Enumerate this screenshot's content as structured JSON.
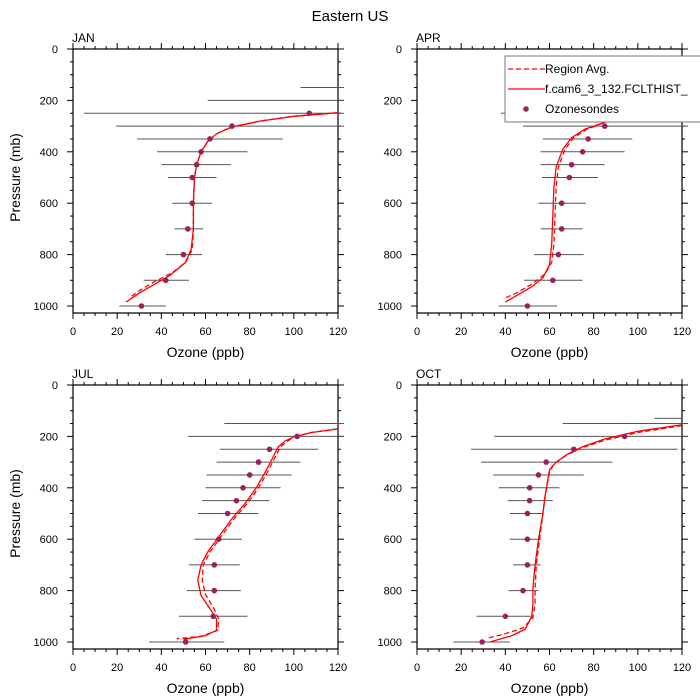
{
  "chart_data": [
    {
      "type": "scatter",
      "title": "JAN",
      "xlabel": "Ozone (ppb)",
      "ylabel": "Pressure (mb)",
      "xlim": [
        0,
        120
      ],
      "ylim": [
        1000,
        0
      ],
      "xticks": [
        "0",
        "20",
        "40",
        "60",
        "80",
        "100",
        "120"
      ],
      "yticks": [
        "0",
        "200",
        "400",
        "600",
        "800",
        "1000"
      ],
      "ozonesondes": {
        "pressure": [
          250,
          300,
          350,
          400,
          450,
          500,
          600,
          700,
          800,
          900,
          1000
        ],
        "ozone": [
          107,
          72,
          62,
          58,
          56,
          54,
          54,
          52,
          50,
          42,
          31
        ]
      },
      "error_bars": [
        {
          "p": 150,
          "lo": 103,
          "hi": 130
        },
        {
          "p": 200,
          "lo": 61,
          "hi": 130
        },
        {
          "p": 250,
          "lo": 5,
          "hi": 130
        },
        {
          "p": 300,
          "lo": 19.5,
          "hi": 130
        },
        {
          "p": 350,
          "lo": 29,
          "hi": 95
        },
        {
          "p": 400,
          "lo": 38,
          "hi": 79
        },
        {
          "p": 450,
          "lo": 40,
          "hi": 71.5
        },
        {
          "p": 500,
          "lo": 43,
          "hi": 65
        },
        {
          "p": 600,
          "lo": 45,
          "hi": 63
        },
        {
          "p": 700,
          "lo": 46,
          "hi": 59
        },
        {
          "p": 800,
          "lo": 42,
          "hi": 58.5
        },
        {
          "p": 900,
          "lo": 32,
          "hi": 52.5
        },
        {
          "p": 1000,
          "lo": 21,
          "hi": 42
        }
      ],
      "model": [
        [
          120,
          248
        ],
        [
          100,
          262
        ],
        [
          85,
          280
        ],
        [
          72,
          303
        ],
        [
          65,
          330
        ],
        [
          61,
          360
        ],
        [
          58,
          400
        ],
        [
          56,
          450
        ],
        [
          55,
          500
        ],
        [
          54.5,
          600
        ],
        [
          54.5,
          700
        ],
        [
          53.5,
          780
        ],
        [
          51,
          830
        ],
        [
          44,
          880
        ],
        [
          36,
          920
        ],
        [
          30,
          950
        ],
        [
          24,
          985
        ]
      ],
      "region_avg": [
        [
          120,
          248
        ],
        [
          100,
          262
        ],
        [
          85,
          280
        ],
        [
          72,
          303
        ],
        [
          65,
          330
        ],
        [
          61,
          360
        ],
        [
          58,
          400
        ],
        [
          56,
          450
        ],
        [
          55,
          500
        ],
        [
          54.5,
          600
        ],
        [
          54.5,
          700
        ],
        [
          54,
          780
        ],
        [
          51,
          830
        ],
        [
          45,
          870
        ],
        [
          37,
          905
        ],
        [
          31,
          935
        ],
        [
          26,
          965
        ]
      ]
    },
    {
      "type": "scatter",
      "title": "APR",
      "xlabel": "Ozone (ppb)",
      "ylabel": "",
      "xlim": [
        0,
        120
      ],
      "ylim": [
        1000,
        0
      ],
      "xticks": [
        "0",
        "20",
        "40",
        "60",
        "80",
        "100",
        "120"
      ],
      "yticks": [
        "0",
        "200",
        "400",
        "600",
        "800",
        "1000"
      ],
      "ozonesondes": {
        "pressure": [
          250,
          300,
          350,
          400,
          450,
          500,
          600,
          700,
          800,
          900,
          1000
        ],
        "ozone": [
          104,
          85,
          77.5,
          75,
          70,
          69,
          65.5,
          65.5,
          64,
          61.5,
          50
        ]
      },
      "error_bars": [
        {
          "p": 200,
          "lo": 52,
          "hi": 130
        },
        {
          "p": 250,
          "lo": 38,
          "hi": 130
        },
        {
          "p": 300,
          "lo": 48,
          "hi": 130
        },
        {
          "p": 350,
          "lo": 57,
          "hi": 97.5
        },
        {
          "p": 400,
          "lo": 56,
          "hi": 94
        },
        {
          "p": 450,
          "lo": 56,
          "hi": 85
        },
        {
          "p": 500,
          "lo": 56.5,
          "hi": 82
        },
        {
          "p": 600,
          "lo": 55,
          "hi": 76.5
        },
        {
          "p": 700,
          "lo": 56,
          "hi": 75
        },
        {
          "p": 800,
          "lo": 53,
          "hi": 75.5
        },
        {
          "p": 900,
          "lo": 48.5,
          "hi": 75
        },
        {
          "p": 1000,
          "lo": 37,
          "hi": 63.5
        }
      ],
      "model": [
        [
          120,
          250
        ],
        [
          100,
          262
        ],
        [
          86,
          282
        ],
        [
          76,
          312
        ],
        [
          70,
          345
        ],
        [
          66,
          390
        ],
        [
          63,
          460
        ],
        [
          62,
          540
        ],
        [
          61.5,
          650
        ],
        [
          61,
          760
        ],
        [
          60,
          840
        ],
        [
          57,
          890
        ],
        [
          52,
          925
        ],
        [
          45,
          960
        ],
        [
          40,
          985
        ]
      ],
      "region_avg": [
        [
          120,
          250
        ],
        [
          100,
          262
        ],
        [
          86,
          282
        ],
        [
          77,
          312
        ],
        [
          71,
          345
        ],
        [
          67,
          390
        ],
        [
          64,
          460
        ],
        [
          63,
          540
        ],
        [
          62.5,
          650
        ],
        [
          62,
          760
        ],
        [
          61,
          830
        ],
        [
          58,
          875
        ],
        [
          52,
          915
        ],
        [
          45,
          950
        ],
        [
          39,
          972
        ]
      ]
    },
    {
      "type": "scatter",
      "title": "JUL",
      "xlabel": "Ozone (ppb)",
      "ylabel": "Pressure (mb)",
      "xlim": [
        0,
        120
      ],
      "ylim": [
        1000,
        0
      ],
      "xticks": [
        "0",
        "20",
        "40",
        "60",
        "80",
        "100",
        "120"
      ],
      "yticks": [
        "0",
        "200",
        "400",
        "600",
        "800",
        "1000"
      ],
      "ozonesondes": {
        "pressure": [
          200,
          250,
          300,
          350,
          400,
          450,
          500,
          600,
          700,
          800,
          900,
          1000
        ],
        "ozone": [
          101.5,
          89,
          84,
          80,
          77,
          74,
          70,
          66,
          64,
          64,
          63.5,
          51
        ]
      },
      "error_bars": [
        {
          "p": 150,
          "lo": 68.5,
          "hi": 130
        },
        {
          "p": 200,
          "lo": 52,
          "hi": 130
        },
        {
          "p": 250,
          "lo": 66.5,
          "hi": 111
        },
        {
          "p": 300,
          "lo": 65,
          "hi": 103
        },
        {
          "p": 350,
          "lo": 60.5,
          "hi": 99
        },
        {
          "p": 400,
          "lo": 60,
          "hi": 94
        },
        {
          "p": 450,
          "lo": 58.5,
          "hi": 89
        },
        {
          "p": 500,
          "lo": 56.5,
          "hi": 84
        },
        {
          "p": 600,
          "lo": 55,
          "hi": 76.5
        },
        {
          "p": 700,
          "lo": 52.5,
          "hi": 75.5
        },
        {
          "p": 800,
          "lo": 51.5,
          "hi": 76
        },
        {
          "p": 900,
          "lo": 48,
          "hi": 79
        },
        {
          "p": 1000,
          "lo": 34.5,
          "hi": 68.5
        }
      ],
      "model": [
        [
          120,
          171
        ],
        [
          108,
          185
        ],
        [
          100,
          202
        ],
        [
          96,
          218
        ],
        [
          93,
          240
        ],
        [
          90,
          290
        ],
        [
          87,
          340
        ],
        [
          83,
          400
        ],
        [
          78,
          460
        ],
        [
          72,
          520
        ],
        [
          66,
          590
        ],
        [
          61,
          650
        ],
        [
          58,
          700
        ],
        [
          56.5,
          760
        ],
        [
          58,
          820
        ],
        [
          62,
          870
        ],
        [
          65,
          910
        ],
        [
          65,
          955
        ],
        [
          60,
          975
        ],
        [
          50,
          990
        ]
      ],
      "region_avg": [
        [
          120,
          171
        ],
        [
          108,
          185
        ],
        [
          100,
          202
        ],
        [
          97,
          220
        ],
        [
          94,
          240
        ],
        [
          91,
          290
        ],
        [
          88,
          340
        ],
        [
          84,
          400
        ],
        [
          79,
          460
        ],
        [
          73,
          520
        ],
        [
          67,
          590
        ],
        [
          62,
          650
        ],
        [
          59,
          700
        ],
        [
          58.5,
          760
        ],
        [
          60,
          815
        ],
        [
          63.5,
          865
        ],
        [
          66,
          910
        ],
        [
          65.5,
          955
        ],
        [
          58,
          978
        ],
        [
          47,
          987
        ]
      ]
    },
    {
      "type": "scatter",
      "title": "OCT",
      "xlabel": "Ozone (ppb)",
      "ylabel": "",
      "xlim": [
        0,
        120
      ],
      "ylim": [
        1000,
        0
      ],
      "xticks": [
        "0",
        "20",
        "40",
        "60",
        "80",
        "100",
        "120"
      ],
      "yticks": [
        "0",
        "200",
        "400",
        "600",
        "800",
        "1000"
      ],
      "ozonesondes": {
        "pressure": [
          200,
          250,
          300,
          350,
          400,
          450,
          500,
          600,
          700,
          800,
          900,
          1000
        ],
        "ozone": [
          94,
          71,
          58.5,
          55,
          51,
          51,
          50,
          50,
          50,
          48,
          40,
          29.5
        ]
      },
      "error_bars": [
        {
          "p": 130,
          "lo": 107.5,
          "hi": 120
        },
        {
          "p": 150,
          "lo": 66,
          "hi": 130
        },
        {
          "p": 200,
          "lo": 35,
          "hi": 130
        },
        {
          "p": 250,
          "lo": 24.5,
          "hi": 118
        },
        {
          "p": 300,
          "lo": 29,
          "hi": 88.5
        },
        {
          "p": 350,
          "lo": 34.5,
          "hi": 75.5
        },
        {
          "p": 400,
          "lo": 37,
          "hi": 64.5
        },
        {
          "p": 450,
          "lo": 41,
          "hi": 61.5
        },
        {
          "p": 500,
          "lo": 42,
          "hi": 57
        },
        {
          "p": 600,
          "lo": 42,
          "hi": 56
        },
        {
          "p": 700,
          "lo": 43.5,
          "hi": 56
        },
        {
          "p": 800,
          "lo": 41.5,
          "hi": 55
        },
        {
          "p": 900,
          "lo": 27,
          "hi": 51.5
        },
        {
          "p": 1000,
          "lo": 16.5,
          "hi": 42
        }
      ],
      "model": [
        [
          120,
          155
        ],
        [
          100,
          180
        ],
        [
          85,
          210
        ],
        [
          75,
          240
        ],
        [
          68,
          270
        ],
        [
          63,
          300
        ],
        [
          60,
          330
        ],
        [
          59,
          380
        ],
        [
          58,
          430
        ],
        [
          57,
          500
        ],
        [
          55,
          600
        ],
        [
          53.5,
          700
        ],
        [
          52.5,
          790
        ],
        [
          52.5,
          850
        ],
        [
          52,
          900
        ],
        [
          49,
          950
        ],
        [
          43,
          975
        ],
        [
          33,
          1000
        ]
      ],
      "region_avg": [
        [
          120,
          158
        ],
        [
          100,
          185
        ],
        [
          85,
          215
        ],
        [
          74,
          246
        ],
        [
          67,
          277
        ],
        [
          62,
          307
        ],
        [
          60,
          340
        ],
        [
          59,
          385
        ],
        [
          58,
          435
        ],
        [
          57,
          500
        ],
        [
          55.5,
          600
        ],
        [
          54,
          700
        ],
        [
          53.5,
          790
        ],
        [
          53.5,
          850
        ],
        [
          52.5,
          905
        ],
        [
          48,
          945
        ],
        [
          40,
          968
        ],
        [
          32,
          985
        ]
      ]
    }
  ],
  "figure": {
    "title": "Eastern US",
    "colors": {
      "model": "#ff0000",
      "region_avg": "#ff0000",
      "ozonesondes": "#9b2257",
      "error_bars": "#555555"
    },
    "legend": {
      "placement": "top-right of APR panel",
      "entries": [
        {
          "label": "Region Avg.",
          "style": "dashed"
        },
        {
          "label": "f.cam6_3_132.FCLTHIST_",
          "style": "solid"
        },
        {
          "label": "Ozonesondes",
          "style": "marker"
        }
      ]
    }
  }
}
